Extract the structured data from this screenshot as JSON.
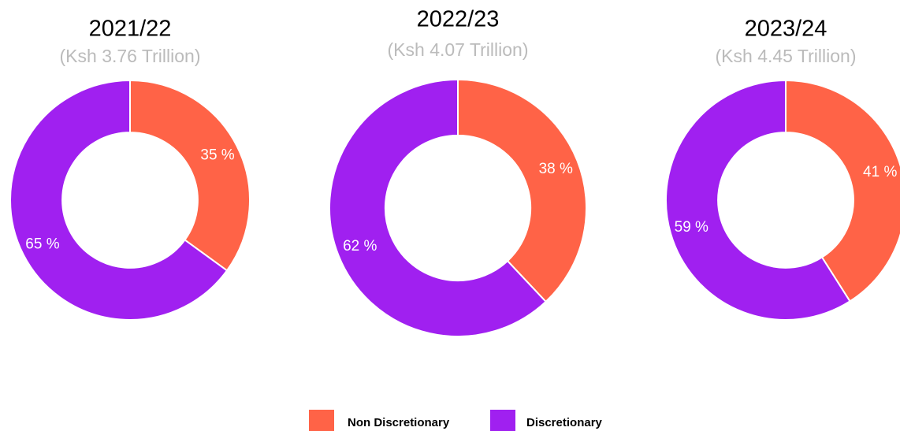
{
  "chart_data": [
    {
      "type": "pie",
      "title": "2021/22",
      "subtitle": "(Ksh 3.76 Trillion)",
      "categories": [
        "Non Discretionary",
        "Discretionary"
      ],
      "values": [
        35,
        65
      ],
      "value_labels": [
        "35 %",
        "65 %"
      ],
      "colors": [
        "#ff6347",
        "#a020f0"
      ],
      "donut": true
    },
    {
      "type": "pie",
      "title": "2022/23",
      "subtitle": "(Ksh 4.07 Trillion)",
      "categories": [
        "Non Discretionary",
        "Discretionary"
      ],
      "values": [
        38,
        62
      ],
      "value_labels": [
        "38 %",
        "62 %"
      ],
      "colors": [
        "#ff6347",
        "#a020f0"
      ],
      "donut": true
    },
    {
      "type": "pie",
      "title": "2023/24",
      "subtitle": "(Ksh 4.45 Trillion)",
      "categories": [
        "Non Discretionary",
        "Discretionary"
      ],
      "values": [
        41,
        59
      ],
      "value_labels": [
        "41 %",
        "59 %"
      ],
      "colors": [
        "#ff6347",
        "#a020f0"
      ],
      "donut": true
    }
  ]
}
